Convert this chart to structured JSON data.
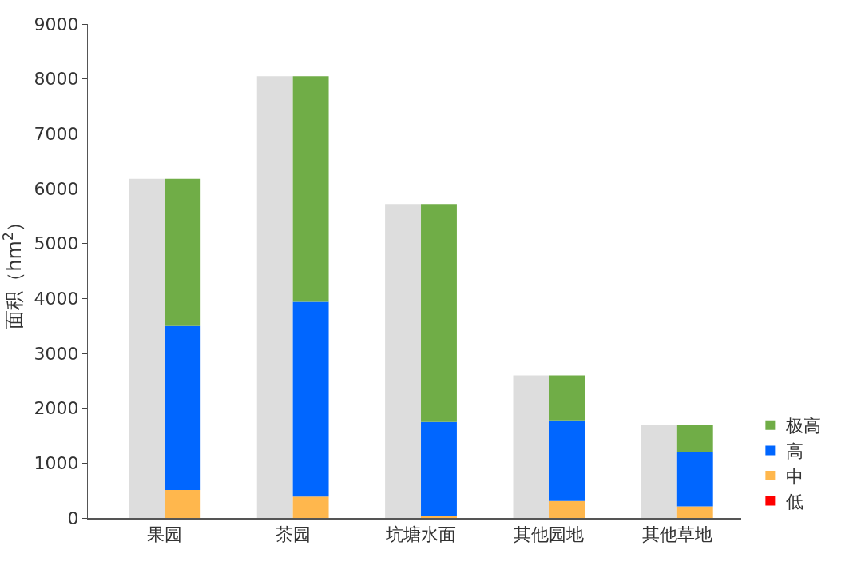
{
  "chart_data": {
    "type": "bar",
    "ylabel": "面积（hm$^{2}$）",
    "categories": [
      "果园",
      "茶园",
      "坑塘水面",
      "其他园地",
      "其他草地"
    ],
    "series": [
      {
        "color": "#dddddd",
        "values": [
          6180,
          8050,
          5720,
          2600,
          1690
        ]
      },
      {
        "name": "低",
        "color": "#ff0000",
        "values": [
          0,
          0,
          0,
          0,
          0
        ]
      },
      {
        "name": "中",
        "color": "#ffb74d",
        "values": [
          510,
          390,
          40,
          310,
          210
        ],
        "base": [
          0,
          0,
          0,
          0,
          0
        ]
      },
      {
        "name": "高",
        "color": "#0066ff",
        "values": [
          2990,
          3550,
          1710,
          1470,
          990
        ],
        "base": [
          510,
          390,
          40,
          310,
          210
        ]
      },
      {
        "name": "极高",
        "color": "#70ad47",
        "values": [
          2680,
          4110,
          3970,
          820,
          490
        ],
        "base": [
          3500,
          3940,
          1750,
          1780,
          1200
        ]
      }
    ],
    "ylim": [
      0,
      9000
    ],
    "yticks": [
      0,
      1000,
      2000,
      3000,
      4000,
      5000,
      6000,
      7000,
      8000,
      9000
    ],
    "legend": "bottom right"
  }
}
